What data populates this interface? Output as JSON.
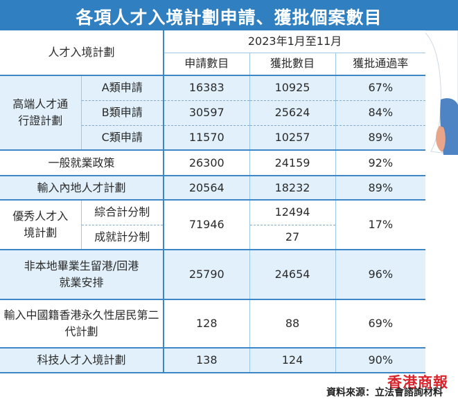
{
  "title": "各項人才入境計劃申請、獲批個案數目",
  "table": {
    "corner_label": "人才入境計劃",
    "period": "2023年1月至11月",
    "columns": [
      "申請數目",
      "獲批數目",
      "獲批通過率"
    ],
    "groups": {
      "ttps": {
        "name": "高端人才通行證計劃",
        "rows": [
          {
            "sub": "A類申請",
            "applied": "16383",
            "approved": "10925",
            "rate": "67%"
          },
          {
            "sub": "B類申請",
            "applied": "30597",
            "approved": "25624",
            "rate": "84%"
          },
          {
            "sub": "C類申請",
            "applied": "11570",
            "approved": "10257",
            "rate": "89%"
          }
        ]
      },
      "qmas": {
        "name": "優秀人才入境計劃",
        "applied": "71946",
        "rate": "17%",
        "rows": [
          {
            "sub": "綜合計分制",
            "approved": "12494"
          },
          {
            "sub": "成就計分制",
            "approved": "27"
          }
        ]
      }
    },
    "rows": {
      "gep": {
        "name": "一般就業政策",
        "applied": "26300",
        "approved": "24159",
        "rate": "92%"
      },
      "asmtp": {
        "name": "輸入內地人才計劃",
        "applied": "20564",
        "approved": "18232",
        "rate": "89%"
      },
      "irnd": {
        "name": "非本地畢業生留港/回港就業安排",
        "applied": "25790",
        "approved": "24654",
        "rate": "96%"
      },
      "second_gen": {
        "name": "輸入中國籍香港永久性居民第二代計劃",
        "applied": "128",
        "approved": "88",
        "rate": "69%"
      },
      "techtas": {
        "name": "科技人才入境計劃",
        "applied": "138",
        "approved": "124",
        "rate": "90%"
      }
    }
  },
  "footer": {
    "logo_text": "香港商報",
    "source": "資料來源：立法會諮詢材料"
  },
  "colors": {
    "title_bg": "#2f7fc1",
    "row_tint": "#e1f0fa",
    "rule": "#3d86c6",
    "logo": "#d8232a"
  }
}
